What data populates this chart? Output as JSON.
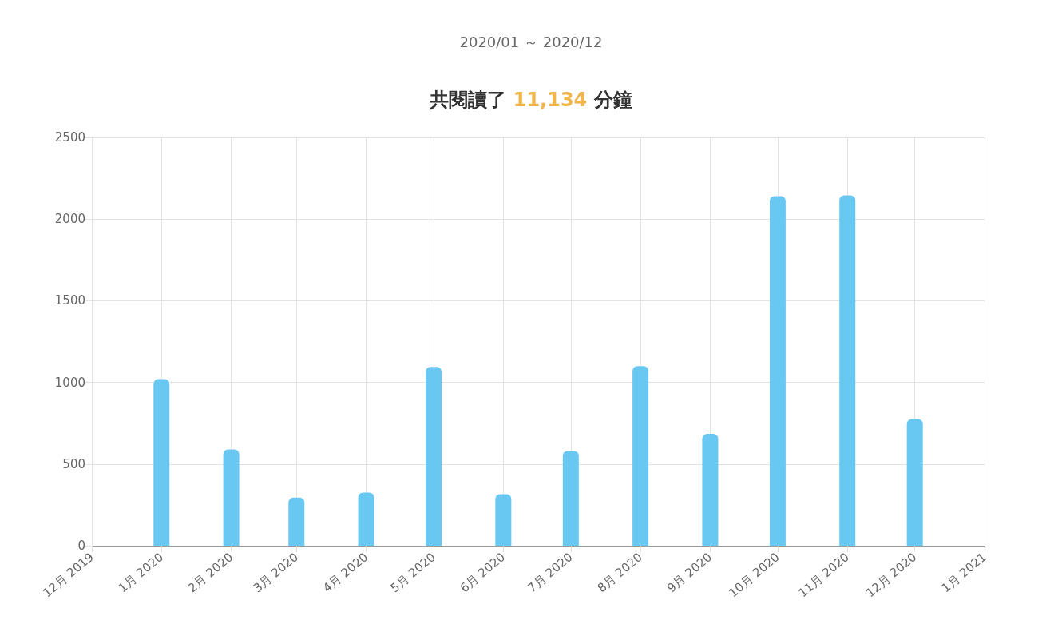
{
  "chart_data": {
    "type": "bar",
    "subtitle": "2020/01 ～ 2020/12",
    "title": "共閱讀了 11,134 分鐘",
    "x": [
      "2020-01",
      "2020-02",
      "2020-03",
      "2020-04",
      "2020-05",
      "2020-06",
      "2020-07",
      "2020-08",
      "2020-09",
      "2020-10",
      "2020-11",
      "2020-12"
    ],
    "values": [
      1020,
      590,
      295,
      325,
      1095,
      315,
      580,
      1100,
      685,
      2140,
      2145,
      775
    ],
    "color": "#68c8f2",
    "xlim": [
      "2019-12",
      "2021-01"
    ],
    "xticks": [
      {
        "value": "2019-12",
        "label": "12月 2019"
      },
      {
        "value": "2020-01",
        "label": "1月 2020"
      },
      {
        "value": "2020-02",
        "label": "2月 2020"
      },
      {
        "value": "2020-03",
        "label": "3月 2020"
      },
      {
        "value": "2020-04",
        "label": "4月 2020"
      },
      {
        "value": "2020-05",
        "label": "5月 2020"
      },
      {
        "value": "2020-06",
        "label": "6月 2020"
      },
      {
        "value": "2020-07",
        "label": "7月 2020"
      },
      {
        "value": "2020-08",
        "label": "8月 2020"
      },
      {
        "value": "2020-09",
        "label": "9月 2020"
      },
      {
        "value": "2020-10",
        "label": "10月 2020"
      },
      {
        "value": "2020-11",
        "label": "11月 2020"
      },
      {
        "value": "2020-12",
        "label": "12月 2020"
      },
      {
        "value": "2021-01",
        "label": "1月 2021"
      }
    ],
    "ylim": [
      0,
      2500
    ],
    "yticks": [
      0,
      500,
      1000,
      1500,
      2000,
      2500
    ],
    "grid": true
  }
}
